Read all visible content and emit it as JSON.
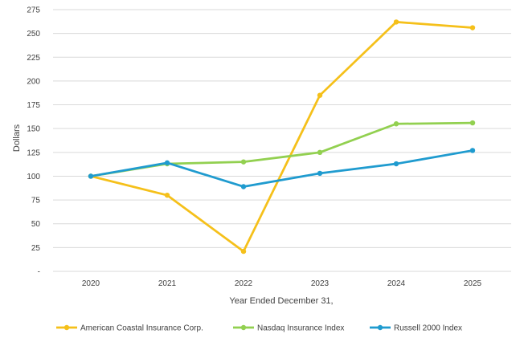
{
  "chart_data": {
    "type": "line",
    "xlabel": "Year Ended December 31,",
    "ylabel": "Dollars",
    "categories": [
      "2020",
      "2021",
      "2022",
      "2023",
      "2024",
      "2025"
    ],
    "ylim": [
      0,
      275
    ],
    "yticks": [
      {
        "value": 0,
        "label": "-"
      },
      {
        "value": 25,
        "label": "25"
      },
      {
        "value": 50,
        "label": "50"
      },
      {
        "value": 75,
        "label": "75"
      },
      {
        "value": 100,
        "label": "100"
      },
      {
        "value": 125,
        "label": "125"
      },
      {
        "value": 150,
        "label": "150"
      },
      {
        "value": 175,
        "label": "175"
      },
      {
        "value": 200,
        "label": "200"
      },
      {
        "value": 225,
        "label": "225"
      },
      {
        "value": 250,
        "label": "250"
      },
      {
        "value": 275,
        "label": "275"
      }
    ],
    "grid": "horizontal",
    "legend_position": "bottom",
    "series": [
      {
        "name": "American Coastal Insurance Corp.",
        "color": "#F5C01A",
        "values": [
          100,
          80,
          21,
          185,
          262,
          256
        ]
      },
      {
        "name": "Nasdaq Insurance Index",
        "color": "#92D050",
        "values": [
          100,
          113,
          115,
          125,
          155,
          156
        ]
      },
      {
        "name": "Russell 2000 Index",
        "color": "#1F9BCF",
        "values": [
          100,
          114,
          89,
          103,
          113,
          127
        ]
      }
    ]
  }
}
